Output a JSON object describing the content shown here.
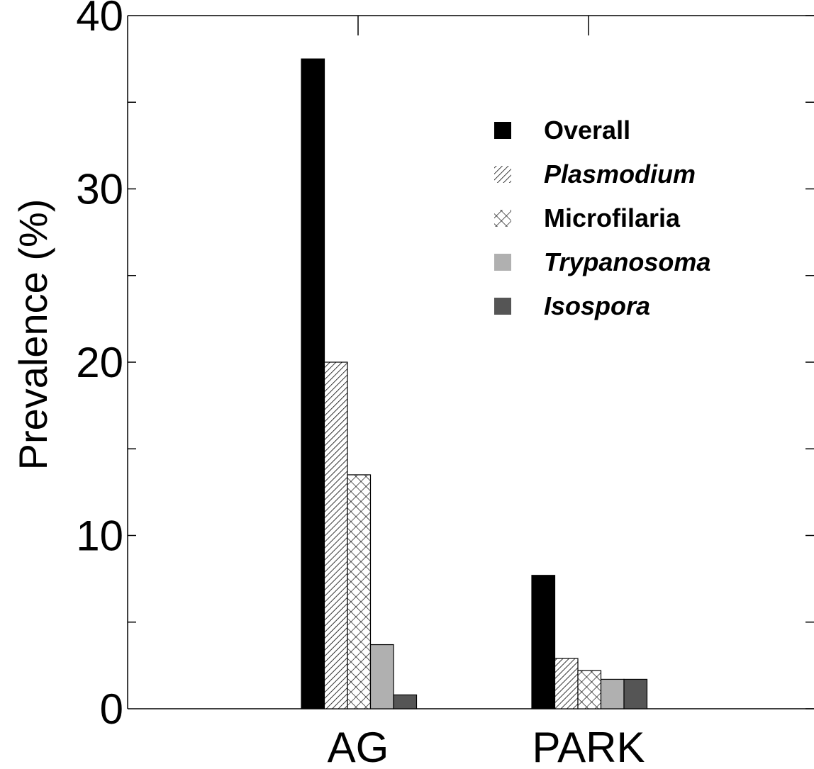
{
  "chart_data": {
    "type": "bar",
    "title": "",
    "xlabel": "",
    "ylabel": "Prevalence (%)",
    "ylim": [
      0,
      40
    ],
    "yticks": [
      "0",
      "10",
      "20",
      "30",
      "40"
    ],
    "categories": [
      "AG",
      "PARK"
    ],
    "legend_position": "top-right",
    "series": [
      {
        "name": "Overall",
        "italic": false,
        "fill": "solid-black",
        "color": "#000000",
        "values": [
          37.5,
          7.7
        ]
      },
      {
        "name": "Plasmodium",
        "italic": true,
        "fill": "diagonal-hatch",
        "color": "#000000",
        "values": [
          20.0,
          2.9
        ]
      },
      {
        "name": "Microfilaria",
        "italic": false,
        "fill": "cross-hatch",
        "color": "#000000",
        "values": [
          13.5,
          2.2
        ]
      },
      {
        "name": "Trypanosoma",
        "italic": true,
        "fill": "solid-light-gray",
        "color": "#b0b0b0",
        "values": [
          3.7,
          1.7
        ]
      },
      {
        "name": "Isospora",
        "italic": true,
        "fill": "solid-dark-gray",
        "color": "#555555",
        "values": [
          0.8,
          1.7
        ]
      }
    ]
  }
}
